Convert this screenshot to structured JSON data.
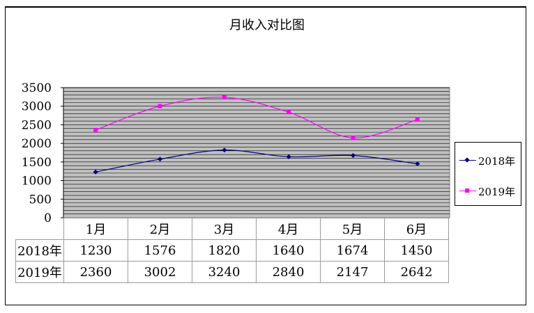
{
  "chart_data": {
    "type": "line",
    "title": "月收入对比图",
    "categories": [
      "1月",
      "2月",
      "3月",
      "4月",
      "5月",
      "6月"
    ],
    "series": [
      {
        "name": "2018年",
        "values": [
          1230,
          1576,
          1820,
          1640,
          1674,
          1450
        ],
        "color": "#000080",
        "marker": "diamond"
      },
      {
        "name": "2019年",
        "values": [
          2360,
          3002,
          3240,
          2840,
          2147,
          2642
        ],
        "color": "#ff00ff",
        "marker": "square"
      }
    ],
    "ylim": [
      0,
      3500
    ],
    "yticks": [
      0,
      500,
      1000,
      1500,
      2000,
      2500,
      3000,
      3500
    ],
    "grid": "horizontal",
    "legend_position": "right",
    "data_table": true
  }
}
